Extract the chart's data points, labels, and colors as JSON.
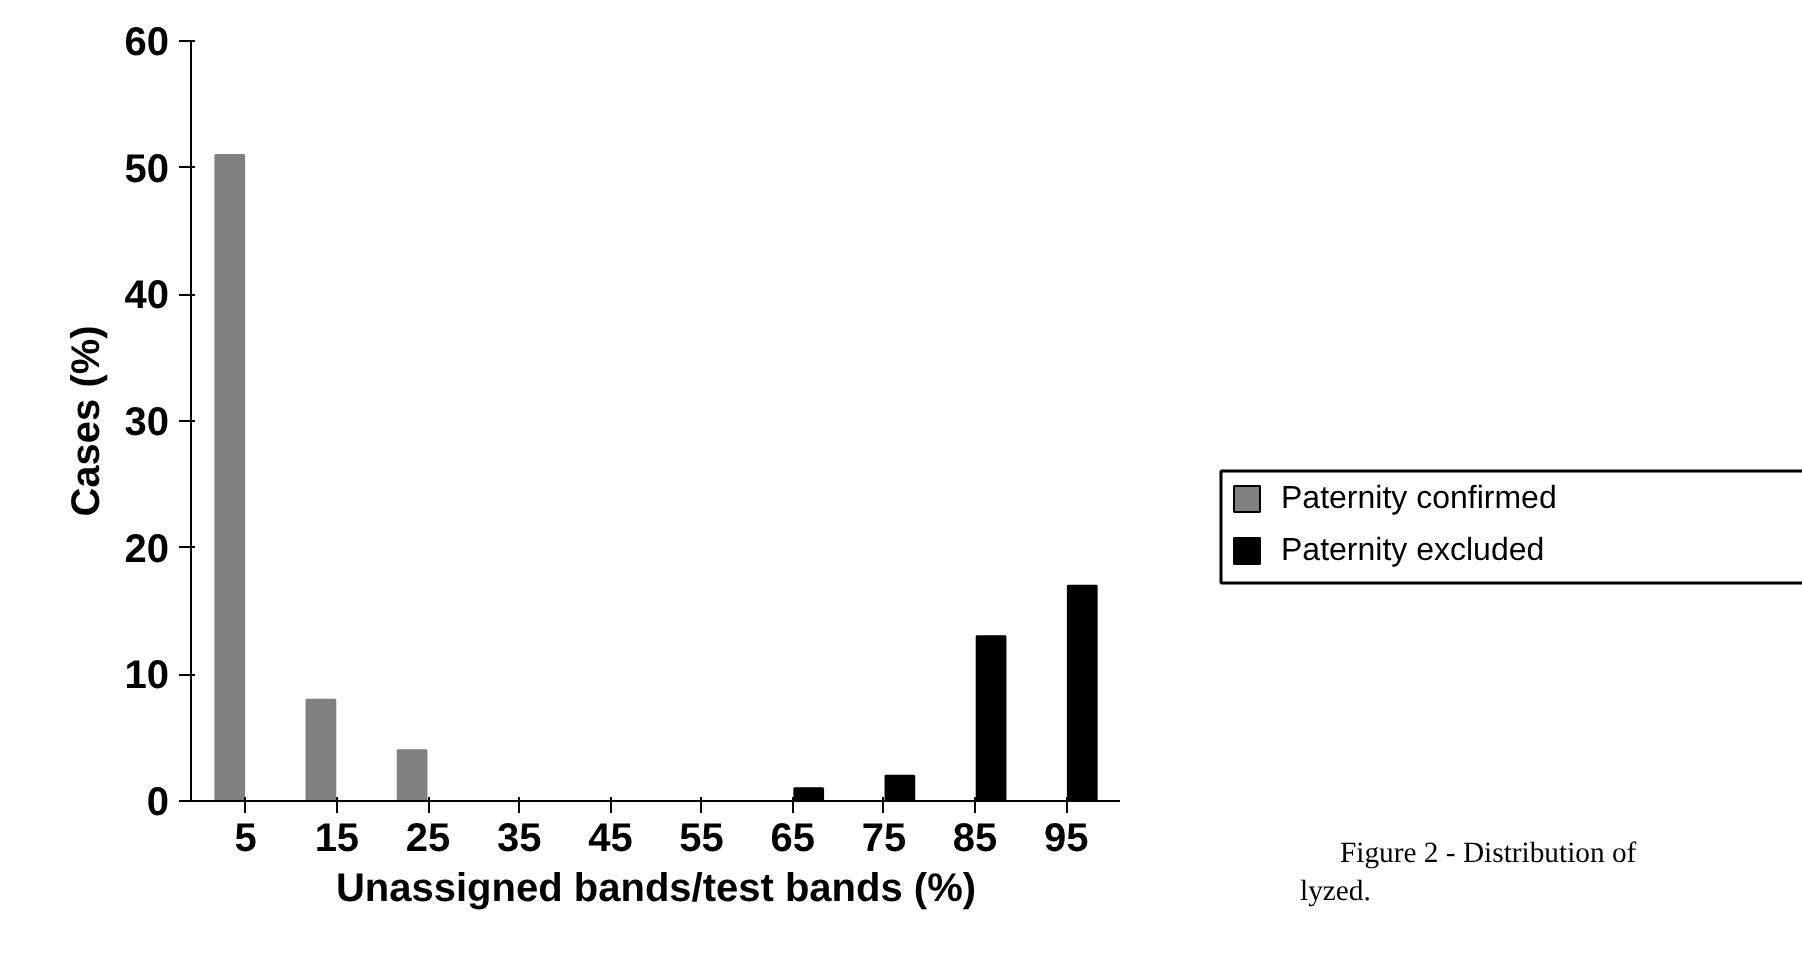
{
  "chart_data": {
    "type": "bar",
    "xlabel": "Unassigned bands/test bands (%)",
    "ylabel": "Cases (%)",
    "categories": [
      "5",
      "15",
      "25",
      "35",
      "45",
      "55",
      "65",
      "75",
      "85",
      "95"
    ],
    "series": [
      {
        "name": "Paternity confirmed",
        "color": "#808080",
        "values": [
          51,
          8,
          4,
          0,
          0,
          0,
          0,
          0,
          0,
          0
        ]
      },
      {
        "name": "Paternity excluded",
        "color": "#000000",
        "values": [
          0,
          0,
          0,
          0,
          0,
          0,
          1,
          2,
          13,
          17
        ]
      }
    ],
    "ylim": [
      0,
      60
    ],
    "yticks": [
      0,
      10,
      20,
      30,
      40,
      50,
      60
    ],
    "grid": false,
    "legend": "right",
    "annotations": [
      "Figure 2 - Distribution of",
      "lyzed."
    ]
  }
}
